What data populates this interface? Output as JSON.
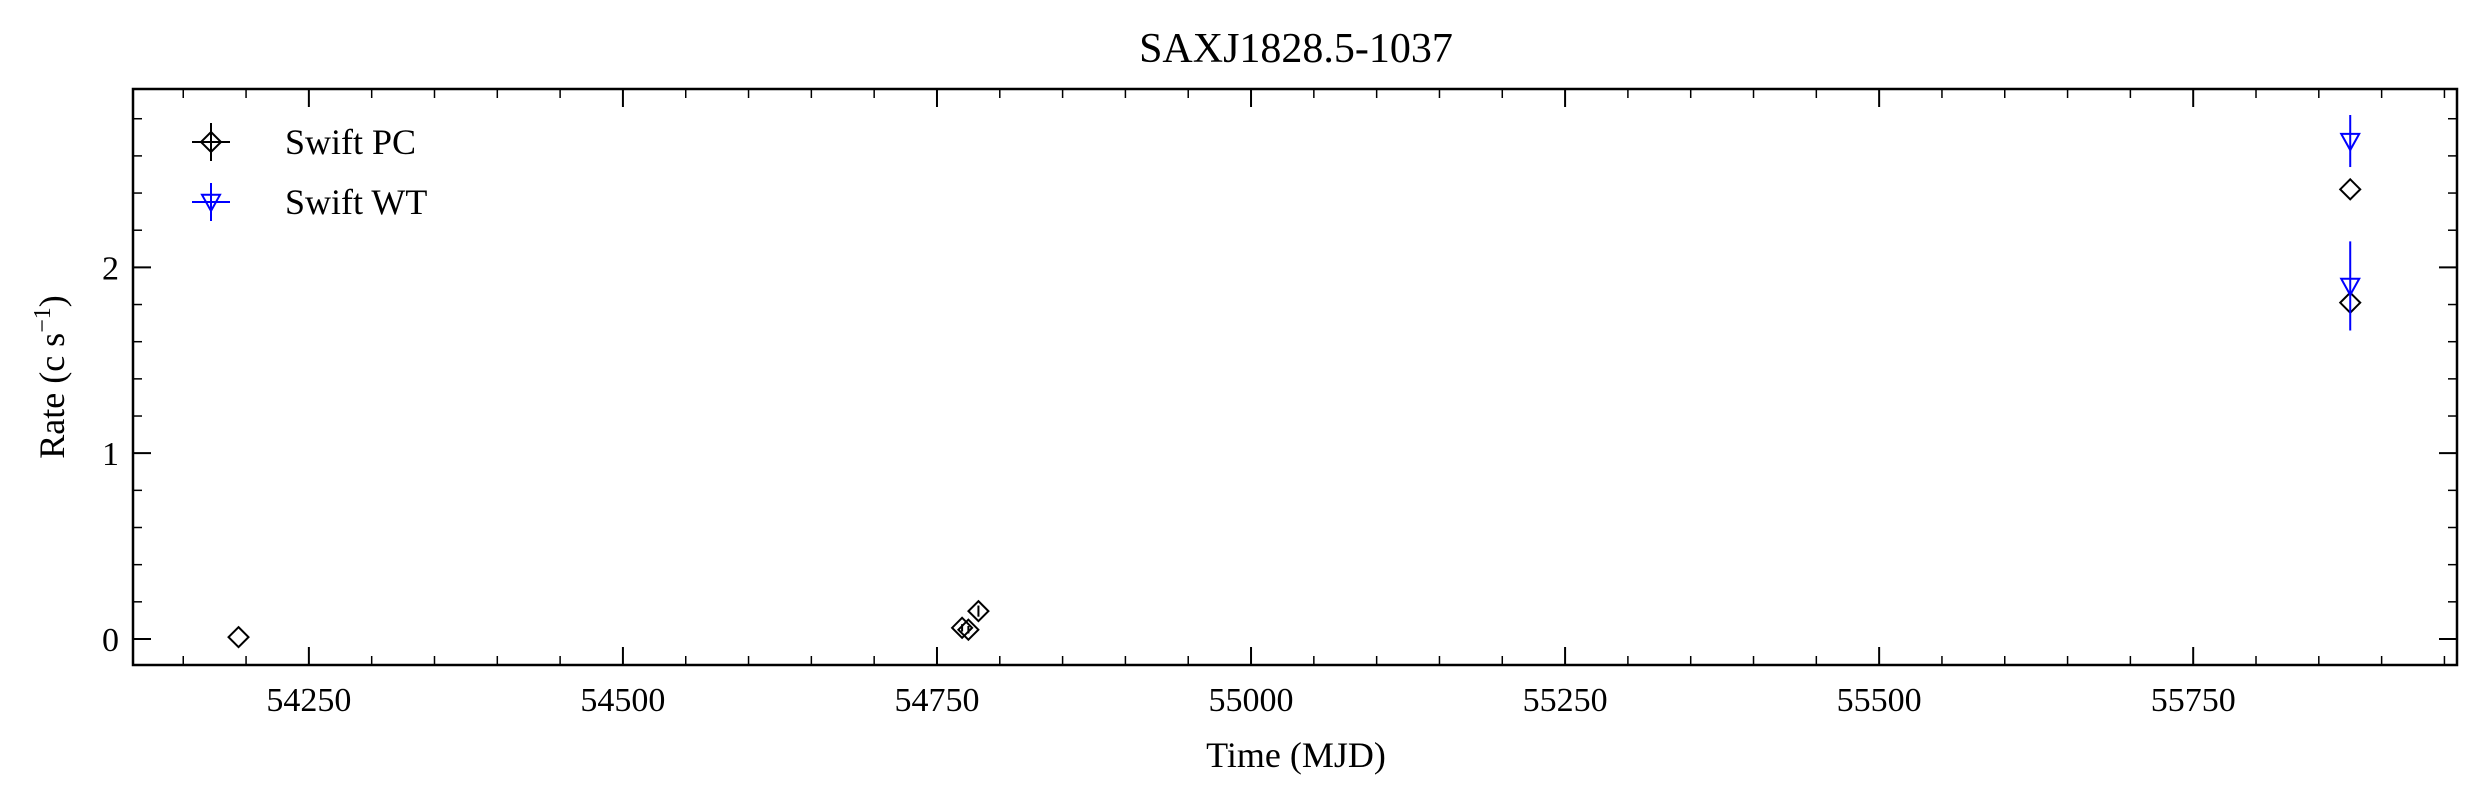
{
  "chart_data": {
    "type": "scatter",
    "title": "SAXJ1828.5-1037",
    "xlabel": "Time (MJD)",
    "ylabel": "Rate (c s",
    "ylabel_sup": "−1",
    "ylabel_close": ")",
    "xlim": [
      54110,
      55960
    ],
    "ylim": [
      -0.14,
      2.96
    ],
    "x_major_ticks": [
      54250,
      54500,
      54750,
      55000,
      55250,
      55500,
      55750
    ],
    "x_tick_labels": [
      "54250",
      "54500",
      "54750",
      "55000",
      "55250",
      "55500",
      "55750"
    ],
    "x_minor_step": 50,
    "y_major_ticks": [
      0,
      1,
      2
    ],
    "y_tick_labels": [
      "0",
      "1",
      "2"
    ],
    "y_minor_step": 0.2,
    "grid": false,
    "legend_position": "top-left",
    "series": [
      {
        "name": "Swift PC",
        "marker": "diamond",
        "color": "#000000",
        "points": [
          {
            "x": 54194,
            "y": 0.01,
            "yerr": 0.0
          },
          {
            "x": 54770,
            "y": 0.06,
            "yerr": 0.02
          },
          {
            "x": 54775,
            "y": 0.05,
            "yerr": 0.02
          },
          {
            "x": 54783,
            "y": 0.15,
            "yerr": 0.03
          },
          {
            "x": 55875,
            "y": 2.42,
            "yerr": 0.0
          },
          {
            "x": 55875,
            "y": 1.81,
            "yerr": 0.0
          }
        ]
      },
      {
        "name": "Swift WT",
        "marker": "triangle-down",
        "color": "#0000ff",
        "points": [
          {
            "x": 55875,
            "y": 2.68,
            "yerr": 0.14
          },
          {
            "x": 55875,
            "y": 1.9,
            "yerr": 0.24
          }
        ]
      }
    ]
  }
}
